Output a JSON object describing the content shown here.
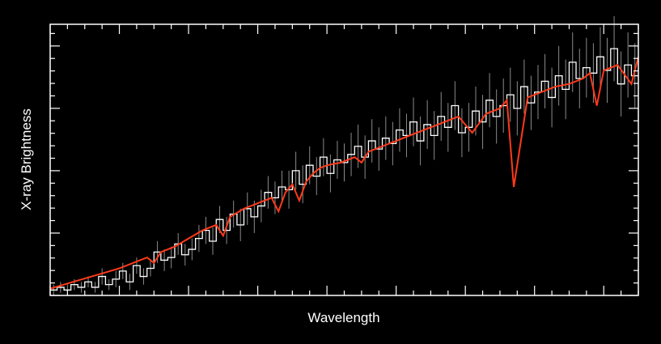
{
  "chart_data": {
    "type": "line",
    "xlabel": "Wavelength",
    "ylabel": "X-ray Brightness",
    "xlim": [
      0,
      170
    ],
    "ylim": [
      0,
      100
    ],
    "grid": false,
    "x_major_ticks": [
      0,
      20,
      40,
      60,
      70,
      80,
      100,
      120,
      140,
      160,
      170
    ],
    "y_major_ticks": [
      0,
      23,
      46,
      69,
      92,
      100
    ],
    "series": [
      {
        "kind": "observed-histogram",
        "color": "#ffffff",
        "x": [
          0,
          2,
          4,
          6,
          8,
          10,
          12,
          14,
          16,
          18,
          20,
          22,
          24,
          26,
          28,
          30,
          32,
          34,
          36,
          38,
          40,
          42,
          44,
          46,
          48,
          50,
          52,
          54,
          56,
          58,
          60,
          62,
          64,
          66,
          68,
          70,
          72,
          74,
          76,
          78,
          80,
          82,
          84,
          86,
          88,
          90,
          92,
          94,
          96,
          98,
          100,
          102,
          104,
          106,
          108,
          110,
          112,
          114,
          116,
          118,
          120,
          122,
          124,
          126,
          128,
          130,
          132,
          134,
          136,
          138,
          140,
          142,
          144,
          146,
          148,
          150,
          152,
          154,
          156,
          158,
          160,
          162,
          164,
          166,
          168
        ],
        "values": [
          2,
          3,
          2,
          4,
          3,
          5,
          3,
          7,
          4,
          6,
          9,
          5,
          11,
          7,
          10,
          16,
          13,
          14,
          19,
          15,
          17,
          21,
          24,
          20,
          28,
          24,
          30,
          26,
          32,
          29,
          33,
          38,
          36,
          40,
          39,
          46,
          41,
          48,
          44,
          51,
          45,
          50,
          49,
          52,
          55,
          51,
          57,
          54,
          58,
          56,
          61,
          59,
          64,
          57,
          63,
          59,
          66,
          62,
          70,
          60,
          62,
          68,
          64,
          72,
          66,
          70,
          74,
          69,
          77,
          71,
          75,
          79,
          73,
          81,
          76,
          86,
          80,
          84,
          82,
          88,
          83,
          91,
          78,
          85,
          81
        ],
        "error": [
          2,
          2,
          2,
          2,
          2,
          2,
          2,
          3,
          2,
          3,
          3,
          3,
          3,
          3,
          3,
          4,
          4,
          4,
          4,
          4,
          4,
          5,
          5,
          5,
          5,
          5,
          5,
          6,
          6,
          6,
          6,
          6,
          6,
          6,
          7,
          7,
          7,
          7,
          7,
          7,
          7,
          7,
          7,
          8,
          8,
          8,
          8,
          8,
          8,
          8,
          8,
          8,
          9,
          9,
          9,
          9,
          9,
          9,
          9,
          9,
          9,
          9,
          10,
          10,
          10,
          10,
          10,
          10,
          10,
          10,
          10,
          10,
          11,
          11,
          11,
          11,
          11,
          11,
          11,
          11,
          12,
          12,
          12,
          12,
          12
        ]
      },
      {
        "kind": "model-line",
        "color": "#ff3a1a",
        "x": [
          0,
          4,
          8,
          12,
          16,
          20,
          24,
          28,
          30,
          32,
          36,
          40,
          44,
          48,
          50,
          52,
          56,
          60,
          64,
          66,
          68,
          70,
          72,
          74,
          76,
          78,
          80,
          84,
          88,
          90,
          92,
          96,
          100,
          104,
          110,
          114,
          118,
          122,
          126,
          130,
          132,
          134,
          138,
          142,
          146,
          150,
          154,
          156,
          158,
          160,
          164,
          168,
          170
        ],
        "values": [
          2.5,
          4,
          5.5,
          7,
          8.5,
          10,
          12,
          14,
          12,
          16,
          18,
          21,
          24,
          26,
          22,
          29,
          32,
          34,
          36,
          31,
          38,
          41,
          35,
          42,
          45,
          47,
          48,
          49,
          51,
          49,
          53,
          55,
          57,
          59,
          62,
          64,
          66,
          60,
          67,
          69,
          72,
          40,
          73,
          75,
          77,
          78,
          80,
          82,
          70,
          83,
          85,
          78,
          88
        ]
      }
    ]
  }
}
